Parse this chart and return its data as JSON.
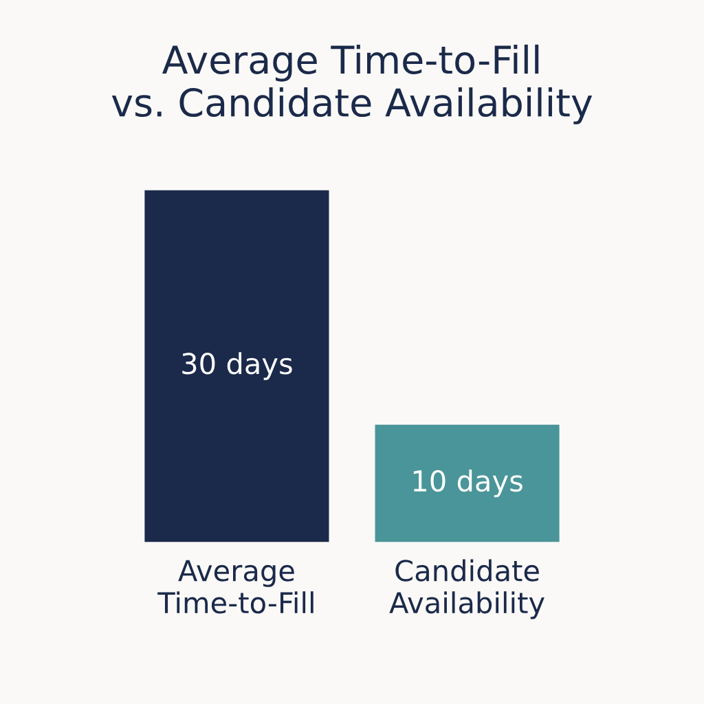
{
  "chart_data": {
    "type": "bar",
    "title": "Average Time-to-Fill\nvs. Candidate Availability",
    "categories": [
      "Average\nTime-to-Fill",
      "Candidate\nAvailability"
    ],
    "values": [
      30,
      10
    ],
    "colors": [
      "#1b2a4a",
      "#4a9599"
    ],
    "value_labels": [
      "30 days",
      "10 days"
    ],
    "grid": false,
    "legend": false
  }
}
